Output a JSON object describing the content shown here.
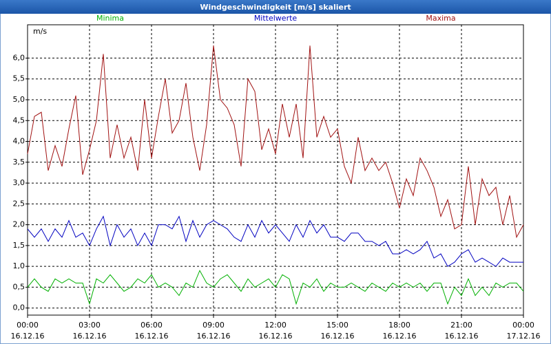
{
  "chart_data": {
    "type": "line",
    "title": "Windgeschwindigkeit [m/s] skaliert",
    "y_label": "m/s",
    "x": [
      0,
      20,
      40,
      60,
      80,
      100,
      120,
      140,
      160,
      180,
      200,
      220,
      240,
      260,
      280,
      300,
      320,
      340,
      360,
      380,
      400,
      420,
      440,
      460,
      480,
      500,
      520,
      540,
      560,
      580,
      600,
      620,
      640,
      660,
      680,
      700,
      720,
      740,
      760,
      780,
      800,
      820,
      840,
      860,
      880,
      900,
      920,
      940,
      960,
      980,
      1000,
      1020,
      1040,
      1060,
      1080,
      1100,
      1120,
      1140,
      1160,
      1180,
      1200,
      1220,
      1240,
      1260,
      1280,
      1300,
      1320,
      1340,
      1360,
      1380,
      1400,
      1420,
      1440
    ],
    "xlim": [
      0,
      1440
    ],
    "xticks": [
      {
        "value": 0,
        "label": "00:00\n16.12.16"
      },
      {
        "value": 180,
        "label": "03:00\n16.12.16"
      },
      {
        "value": 360,
        "label": "06:00\n16.12.16"
      },
      {
        "value": 540,
        "label": "09:00\n16.12.16"
      },
      {
        "value": 720,
        "label": "12:00\n16.12.16"
      },
      {
        "value": 900,
        "label": "15:00\n16.12.16"
      },
      {
        "value": 1080,
        "label": "18:00\n16.12.16"
      },
      {
        "value": 1260,
        "label": "21:00\n16.12.16"
      },
      {
        "value": 1440,
        "label": "00:00\n17.12.16"
      }
    ],
    "ylim": [
      -0.17,
      6.8
    ],
    "yticks": [
      {
        "value": 0,
        "label": "0,0"
      },
      {
        "value": 0.5,
        "label": "0,5"
      },
      {
        "value": 1,
        "label": "1,0"
      },
      {
        "value": 1.5,
        "label": "1,5"
      },
      {
        "value": 2,
        "label": "2,0"
      },
      {
        "value": 2.5,
        "label": "2,5"
      },
      {
        "value": 3,
        "label": "3,0"
      },
      {
        "value": 3.5,
        "label": "3,5"
      },
      {
        "value": 4,
        "label": "4,0"
      },
      {
        "value": 4.5,
        "label": "4,5"
      },
      {
        "value": 5,
        "label": "5,0"
      },
      {
        "value": 5.5,
        "label": "5,5"
      },
      {
        "value": 6,
        "label": "6,0"
      }
    ],
    "grid": true,
    "legend": "top",
    "series": [
      {
        "name": "Minima",
        "color": "#00b000",
        "values": [
          0.5,
          0.7,
          0.5,
          0.4,
          0.7,
          0.6,
          0.7,
          0.6,
          0.6,
          0.1,
          0.7,
          0.6,
          0.8,
          0.6,
          0.4,
          0.5,
          0.7,
          0.6,
          0.8,
          0.5,
          0.6,
          0.5,
          0.3,
          0.6,
          0.5,
          0.9,
          0.6,
          0.5,
          0.7,
          0.8,
          0.6,
          0.4,
          0.7,
          0.5,
          0.6,
          0.7,
          0.5,
          0.8,
          0.7,
          0.1,
          0.6,
          0.5,
          0.7,
          0.4,
          0.6,
          0.5,
          0.5,
          0.6,
          0.5,
          0.4,
          0.6,
          0.5,
          0.4,
          0.6,
          0.5,
          0.6,
          0.5,
          0.6,
          0.4,
          0.6,
          0.6,
          0.1,
          0.5,
          0.3,
          0.7,
          0.3,
          0.5,
          0.3,
          0.6,
          0.5,
          0.6,
          0.6,
          0.4
        ]
      },
      {
        "name": "Mittelwerte",
        "color": "#0000c0",
        "values": [
          1.9,
          1.7,
          1.9,
          1.6,
          1.9,
          1.7,
          2.1,
          1.7,
          1.8,
          1.5,
          1.9,
          2.2,
          1.5,
          2.0,
          1.7,
          1.9,
          1.5,
          1.8,
          1.5,
          2.0,
          2.0,
          1.9,
          2.2,
          1.6,
          2.1,
          1.7,
          2.0,
          2.1,
          2.0,
          1.9,
          1.7,
          1.6,
          2.0,
          1.7,
          2.1,
          1.8,
          2.0,
          1.8,
          1.6,
          2.0,
          1.7,
          2.1,
          1.8,
          2.0,
          1.7,
          1.7,
          1.6,
          1.8,
          1.8,
          1.6,
          1.6,
          1.5,
          1.6,
          1.3,
          1.3,
          1.4,
          1.3,
          1.4,
          1.6,
          1.2,
          1.3,
          1.0,
          1.1,
          1.3,
          1.4,
          1.1,
          1.2,
          1.1,
          1.0,
          1.2,
          1.1,
          1.1,
          1.1
        ]
      },
      {
        "name": "Maxima",
        "color": "#a01010",
        "values": [
          3.7,
          4.6,
          4.7,
          3.3,
          3.9,
          3.4,
          4.3,
          5.1,
          3.2,
          3.8,
          4.5,
          6.1,
          3.6,
          4.4,
          3.6,
          4.1,
          3.3,
          5.0,
          3.6,
          4.6,
          5.5,
          4.2,
          4.5,
          5.4,
          4.1,
          3.3,
          4.4,
          6.3,
          5.0,
          4.8,
          4.4,
          3.4,
          5.5,
          5.2,
          3.8,
          4.3,
          3.7,
          4.9,
          4.1,
          4.9,
          3.6,
          6.3,
          4.1,
          4.6,
          4.1,
          4.3,
          3.4,
          3.0,
          4.1,
          3.3,
          3.6,
          3.3,
          3.5,
          3.0,
          2.4,
          3.1,
          2.7,
          3.6,
          3.3,
          2.9,
          2.2,
          2.6,
          1.9,
          2.0,
          3.4,
          2.0,
          3.1,
          2.7,
          2.9,
          2.0,
          2.7,
          1.7,
          2.0
        ]
      }
    ]
  }
}
